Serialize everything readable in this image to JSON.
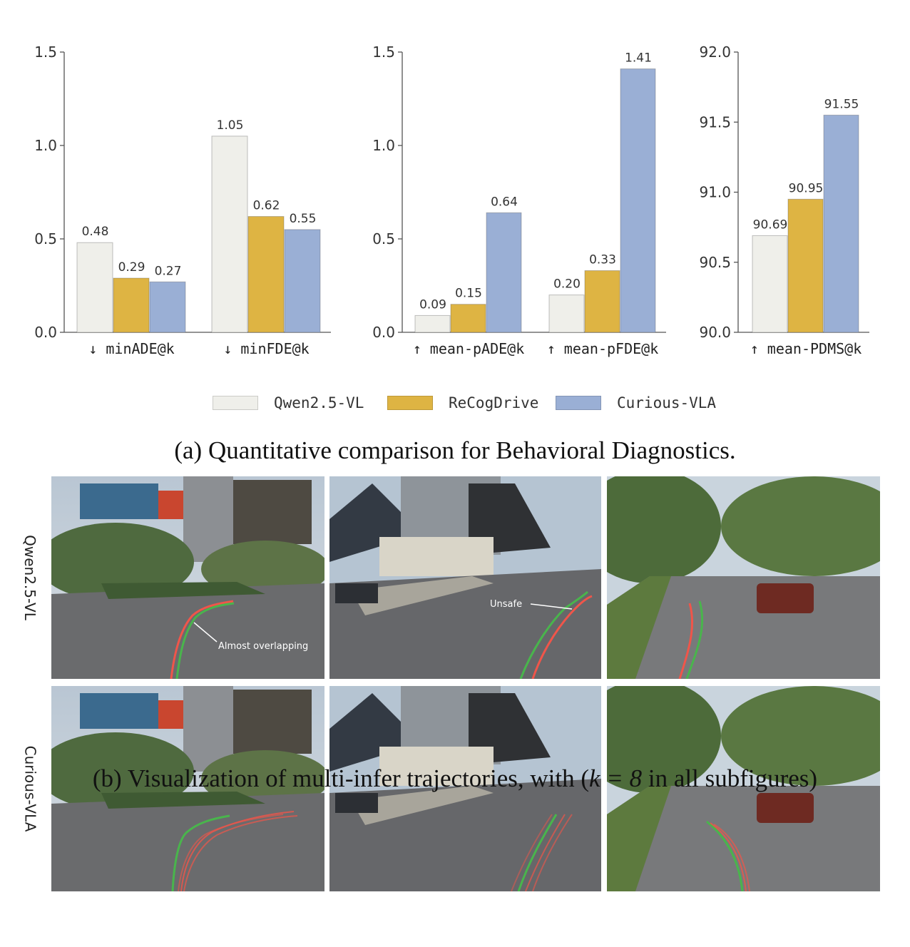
{
  "colors": {
    "qwen": "#efefea",
    "recog": "#deb443",
    "curious": "#9aafd5",
    "ours_traj": "#49b54c",
    "pred_traj": "#f0554a"
  },
  "legend": [
    {
      "label": "Qwen2.5-VL",
      "color": "#efefea"
    },
    {
      "label": "ReCogDrive",
      "color": "#deb443"
    },
    {
      "label": "Curious-VLA",
      "color": "#9aafd5"
    }
  ],
  "chart_data": [
    {
      "type": "bar",
      "categories": [
        "↓ minADE@k",
        "↓ minFDE@k"
      ],
      "series": [
        {
          "name": "Qwen2.5-VL",
          "values": [
            0.48,
            1.05
          ],
          "labels": [
            "0.48",
            "1.05"
          ]
        },
        {
          "name": "ReCogDrive",
          "values": [
            0.29,
            0.62
          ],
          "labels": [
            "0.29",
            "0.62"
          ]
        },
        {
          "name": "Curious-VLA",
          "values": [
            0.27,
            0.55
          ],
          "labels": [
            "0.27",
            "0.55"
          ]
        }
      ],
      "ylim": [
        0,
        1.5
      ],
      "yticks": [
        "0.0",
        "0.5",
        "1.0",
        "1.5"
      ],
      "ytick_values": [
        0,
        0.5,
        1.0,
        1.5
      ],
      "grid": false,
      "legend": "bottom"
    },
    {
      "type": "bar",
      "categories": [
        "↑ mean-pADE@k",
        "↑ mean-pFDE@k"
      ],
      "series": [
        {
          "name": "Qwen2.5-VL",
          "values": [
            0.09,
            0.2
          ],
          "labels": [
            "0.09",
            "0.20"
          ]
        },
        {
          "name": "ReCogDrive",
          "values": [
            0.15,
            0.33
          ],
          "labels": [
            "0.15",
            "0.33"
          ]
        },
        {
          "name": "Curious-VLA",
          "values": [
            0.64,
            1.41
          ],
          "labels": [
            "0.64",
            "1.41"
          ]
        }
      ],
      "ylim": [
        0,
        1.5
      ],
      "yticks": [
        "0.0",
        "0.5",
        "1.0",
        "1.5"
      ],
      "ytick_values": [
        0,
        0.5,
        1.0,
        1.5
      ],
      "grid": false,
      "legend": "bottom"
    },
    {
      "type": "bar",
      "categories": [
        "↑ mean-PDMS@k"
      ],
      "series": [
        {
          "name": "Qwen2.5-VL",
          "values": [
            90.69
          ],
          "labels": [
            "90.69"
          ]
        },
        {
          "name": "ReCogDrive",
          "values": [
            90.95
          ],
          "labels": [
            "90.95"
          ]
        },
        {
          "name": "Curious-VLA",
          "values": [
            91.55
          ],
          "labels": [
            "91.55"
          ]
        }
      ],
      "ylim": [
        90.0,
        92.0
      ],
      "yticks": [
        "90.0",
        "90.5",
        "91.0",
        "91.5",
        "92.0"
      ],
      "ytick_values": [
        90.0,
        90.5,
        91.0,
        91.5,
        92.0
      ],
      "grid": false,
      "legend": "bottom"
    }
  ],
  "caption_a": "(a) Quantitative comparison for Behavioral Diagnostics.",
  "caption_b_pre": "(b) Visualization of multi-infer trajectories, with (",
  "caption_b_math": "k = 8",
  "caption_b_post": " in all subfigures)",
  "rows": [
    {
      "label": "Qwen2.5-VL"
    },
    {
      "label": "Curious-VLA"
    }
  ],
  "annotations": {
    "overlap": "Almost overlapping",
    "unsafe": "Unsafe"
  }
}
